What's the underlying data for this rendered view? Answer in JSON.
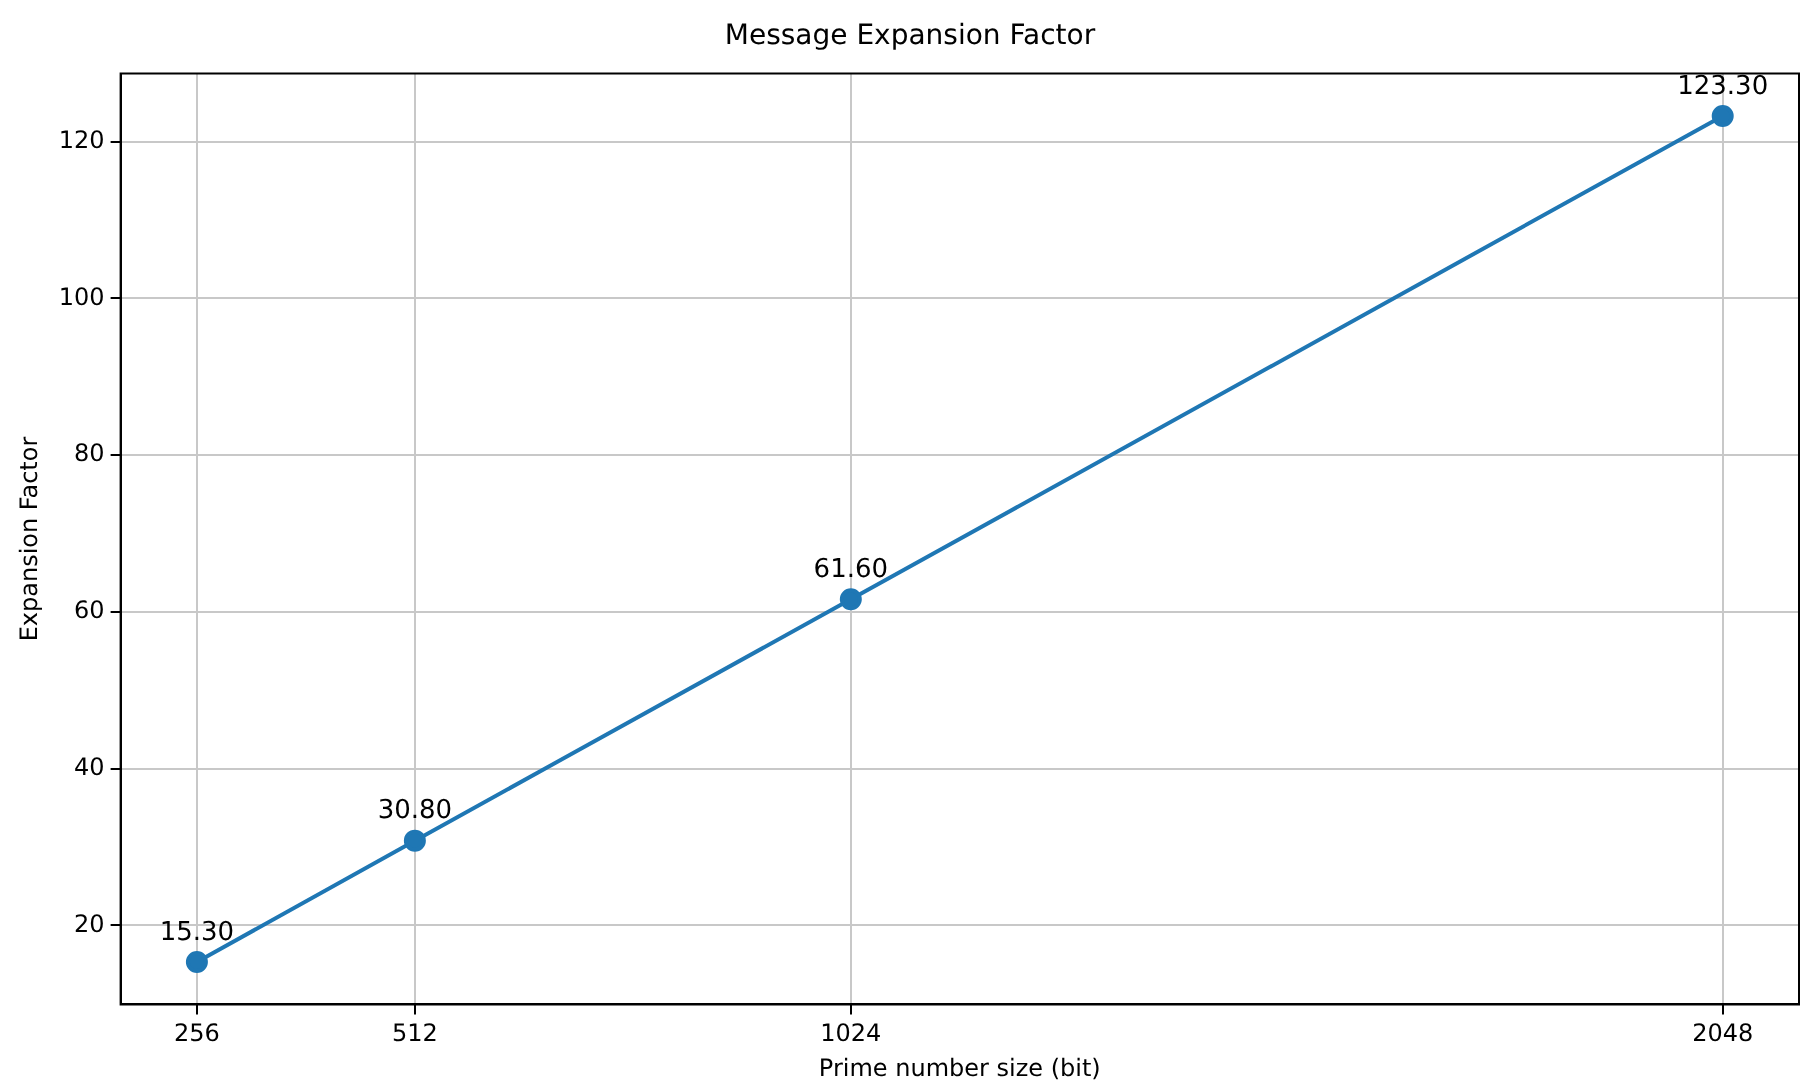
{
  "chart_data": {
    "type": "line",
    "title": "Message Expansion Factor",
    "xlabel": "Prime number size (bit)",
    "ylabel": "Expansion Factor",
    "x": [
      256,
      512,
      1024,
      2048
    ],
    "series": [
      {
        "color": "#1f77b4",
        "values": [
          15.3,
          30.8,
          61.6,
          123.3
        ],
        "value_labels": [
          "15.30",
          "30.80",
          "61.60",
          "123.30"
        ]
      }
    ],
    "xlim": [
      166.4,
      2137.6
    ],
    "xticks": [
      256,
      512,
      1024,
      2048
    ],
    "ylim": [
      9.9,
      128.7
    ],
    "yticks": [
      20,
      40,
      60,
      80,
      100,
      120
    ],
    "grid": true,
    "marker": "circle",
    "line_style": "solid"
  }
}
